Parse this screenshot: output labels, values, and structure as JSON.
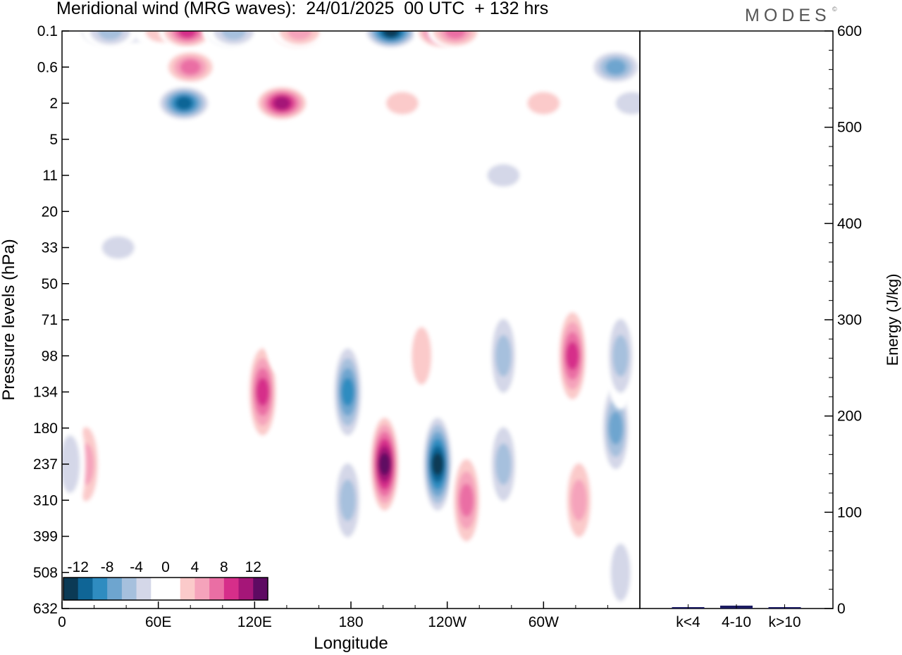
{
  "header": {
    "title": "Meridional wind (MRG waves):  24/01/2025  00 UTC  + 132 hrs",
    "brand": "MODES",
    "brand_mark": "©"
  },
  "chart_data": [
    {
      "type": "heatmap",
      "title": "Meridional wind (MRG waves):  24/01/2025  00 UTC  + 132 hrs",
      "xlabel": "Longitude",
      "ylabel": "Pressure levels (hPa)",
      "x_ticks": [
        "0",
        "60E",
        "120E",
        "180",
        "120W",
        "60W"
      ],
      "x_tick_degrees": [
        0,
        60,
        120,
        180,
        240,
        300
      ],
      "xlim": [
        0,
        360
      ],
      "y_ticks": [
        "0.1",
        "0.6",
        "2",
        "5",
        "11",
        "20",
        "33",
        "50",
        "71",
        "98",
        "134",
        "180",
        "237",
        "310",
        "399",
        "508",
        "632"
      ],
      "y_scale": "pressure levels, top 0.1 hPa to bottom 632 hPa",
      "colorbar": {
        "labels": [
          "-12",
          "-8",
          "-4",
          "0",
          "4",
          "8",
          "12"
        ],
        "levels": [
          -14,
          -12,
          -10,
          -8,
          -6,
          -4,
          -2,
          0,
          2,
          4,
          6,
          8,
          10,
          12,
          14
        ],
        "colors": [
          "#0b3a55",
          "#0f6596",
          "#2f8cc0",
          "#6ea5cf",
          "#a6c0dd",
          "#d4d7e8",
          "#ffffff",
          "#ffffff",
          "#fbcaca",
          "#f5a3bb",
          "#ea6ea4",
          "#d62e8a",
          "#a51678",
          "#5e0a62"
        ],
        "legend_position": "bottom-left"
      },
      "cells": [
        {
          "lon": 25,
          "p": "0.1",
          "v": -6
        },
        {
          "lon": 35,
          "p": "0.3",
          "v": 6
        },
        {
          "lon": 45,
          "p": "0.2",
          "v": -4
        },
        {
          "lon": 62,
          "p": "0.3",
          "v": 4
        },
        {
          "lon": 78,
          "p": "0.4",
          "v": 10
        },
        {
          "lon": 80,
          "p": "0.6",
          "v": 8
        },
        {
          "lon": 30,
          "p": "1",
          "v": -5
        },
        {
          "lon": 76,
          "p": "2",
          "v": -12
        },
        {
          "lon": 105,
          "p": "0.3",
          "v": -10
        },
        {
          "lon": 107,
          "p": "0.5",
          "v": -5
        },
        {
          "lon": 147,
          "p": "0.3",
          "v": 14
        },
        {
          "lon": 148,
          "p": "1",
          "v": 6
        },
        {
          "lon": 137,
          "p": "2",
          "v": 12
        },
        {
          "lon": 150,
          "p": "5",
          "v": 2
        },
        {
          "lon": 205,
          "p": "0.4",
          "v": -14
        },
        {
          "lon": 237,
          "p": "0.2",
          "v": 12
        },
        {
          "lon": 245,
          "p": "0.8",
          "v": 8
        },
        {
          "lon": 212,
          "p": "2",
          "v": 3
        },
        {
          "lon": 300,
          "p": "2",
          "v": 3
        },
        {
          "lon": 345,
          "p": "0.6",
          "v": -8
        },
        {
          "lon": 355,
          "p": "2",
          "v": -3
        },
        {
          "lon": 275,
          "p": "11",
          "v": -3
        },
        {
          "lon": 15,
          "p": "5",
          "v": 2
        },
        {
          "lon": 50,
          "p": "20",
          "v": 2
        },
        {
          "lon": 35,
          "p": "33",
          "v": -3
        },
        {
          "lon": 25,
          "p": "50",
          "v": 2
        },
        {
          "lon": 190,
          "p": "33",
          "v": 2
        },
        {
          "lon": 320,
          "p": "20",
          "v": 2
        },
        {
          "lon": 270,
          "p": "50",
          "v": -2
        },
        {
          "lon": 15,
          "p": "237",
          "v": 6
        },
        {
          "lon": 5,
          "p": "237",
          "v": -4
        },
        {
          "lon": 125,
          "p": "134",
          "v": 10
        },
        {
          "lon": 135,
          "p": "71",
          "v": 2
        },
        {
          "lon": 178,
          "p": "134",
          "v": -10
        },
        {
          "lon": 178,
          "p": "310",
          "v": -6
        },
        {
          "lon": 201,
          "p": "237",
          "v": 14
        },
        {
          "lon": 234,
          "p": "237",
          "v": -14
        },
        {
          "lon": 224,
          "p": "98",
          "v": 4
        },
        {
          "lon": 252,
          "p": "310",
          "v": 8
        },
        {
          "lon": 275,
          "p": "98",
          "v": -6
        },
        {
          "lon": 275,
          "p": "237",
          "v": -6
        },
        {
          "lon": 318,
          "p": "98",
          "v": 10
        },
        {
          "lon": 322,
          "p": "310",
          "v": 6
        },
        {
          "lon": 345,
          "p": "180",
          "v": -8
        },
        {
          "lon": 348,
          "p": "98",
          "v": -5
        },
        {
          "lon": 348,
          "p": "508",
          "v": -4
        }
      ]
    },
    {
      "type": "bar",
      "ylabel": "Energy (J/kg)",
      "categories": [
        "k<4",
        "4-10",
        "k>10"
      ],
      "values": [
        1,
        3,
        1
      ],
      "ylim": [
        0,
        600
      ],
      "y_ticks": [
        "0",
        "100",
        "200",
        "300",
        "400",
        "500",
        "600"
      ],
      "bar_color": "#1a1a60"
    }
  ]
}
